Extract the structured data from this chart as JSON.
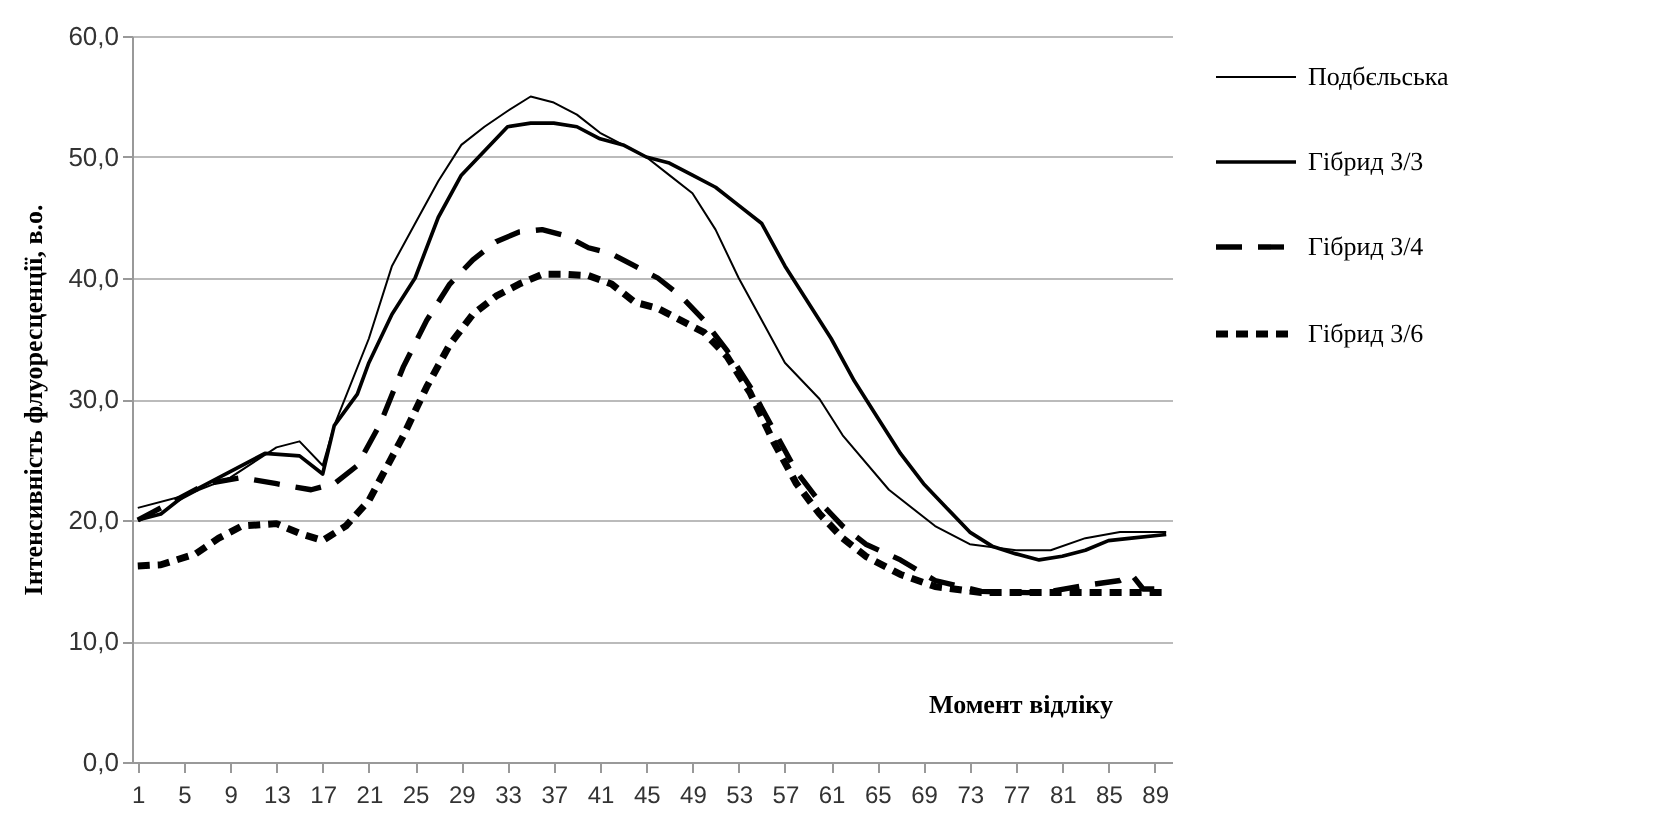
{
  "chart_data": {
    "type": "line",
    "xlabel": "Момент відліку",
    "ylabel": "Інтенсивність флуоресценції, в.о.",
    "xlim": [
      0.5,
      90.5
    ],
    "xticks": [
      1,
      5,
      9,
      13,
      17,
      21,
      25,
      29,
      33,
      37,
      41,
      45,
      49,
      53,
      57,
      61,
      65,
      69,
      73,
      77,
      81,
      85,
      89
    ],
    "ylim": [
      0,
      60
    ],
    "yticks": [
      {
        "value": 0,
        "label": "0,0"
      },
      {
        "value": 10,
        "label": "10,0"
      },
      {
        "value": 20,
        "label": "20,0"
      },
      {
        "value": 30,
        "label": "30,0"
      },
      {
        "value": 40,
        "label": "40,0"
      },
      {
        "value": 50,
        "label": "50,0"
      },
      {
        "value": 60,
        "label": "60,0"
      }
    ],
    "grid": "y",
    "legend": "right",
    "marker": "none",
    "series": [
      {
        "name": "Подбєльська",
        "color": "#000000",
        "line_style": "solid",
        "x": [
          1,
          5,
          9,
          13,
          15,
          17,
          18,
          21,
          23,
          25,
          27,
          29,
          31,
          33,
          35,
          37,
          39,
          41,
          43,
          45,
          47,
          49,
          51,
          53,
          55,
          57,
          60,
          62,
          66,
          70,
          73,
          77,
          80,
          83,
          86,
          90
        ],
        "values": [
          21,
          22,
          23.5,
          26,
          26.5,
          24.5,
          27.8,
          35,
          41,
          44.5,
          48,
          51,
          52.5,
          53.8,
          55,
          54.5,
          53.5,
          52,
          51,
          50,
          48.5,
          47,
          44,
          40,
          36.5,
          33,
          30,
          27,
          22.5,
          19.5,
          18,
          17.5,
          17.5,
          18.5,
          19,
          19
        ]
      },
      {
        "name": "Гібрид 3/3",
        "color": "#000000",
        "line_style": "solid",
        "x": [
          1,
          3,
          5,
          9,
          12,
          15,
          17,
          18,
          20,
          21,
          23,
          25,
          27,
          29,
          31,
          33,
          35,
          37,
          39,
          41,
          43,
          45,
          47,
          49,
          51,
          53,
          55,
          57,
          59,
          61,
          63,
          65,
          67,
          69,
          71,
          73,
          75,
          77,
          79,
          81,
          83,
          85,
          87,
          90
        ],
        "values": [
          20,
          20.5,
          22,
          24,
          25.5,
          25.3,
          23.8,
          27.8,
          30.4,
          33,
          37,
          40,
          45,
          48.5,
          50.5,
          52.5,
          52.8,
          52.8,
          52.5,
          51.5,
          51,
          50,
          49.5,
          48.5,
          47.5,
          46,
          44.5,
          41,
          38,
          35,
          31.5,
          28.5,
          25.5,
          23,
          21,
          19,
          17.8,
          17.2,
          16.7,
          17,
          17.5,
          18.3,
          18.5,
          18.8
        ]
      },
      {
        "name": "Гібрид 3/4",
        "color": "#000000",
        "line_style": "dashed",
        "x": [
          1,
          4,
          7,
          10,
          13,
          16,
          18,
          20,
          22,
          24,
          26,
          28,
          30,
          32,
          34,
          36,
          38,
          40,
          42,
          44,
          46,
          48,
          50,
          52,
          54,
          56,
          58,
          60,
          62,
          64,
          67,
          70,
          74,
          78,
          80,
          83,
          86,
          87,
          88,
          90
        ],
        "values": [
          20,
          21.5,
          23,
          23.5,
          23,
          22.5,
          23,
          24.5,
          28,
          32.7,
          36.5,
          39.5,
          41.5,
          43,
          43.8,
          44,
          43.5,
          42.5,
          42,
          41,
          40,
          38.5,
          36.5,
          34,
          31,
          27.5,
          24,
          21.5,
          19.5,
          18,
          16.7,
          15,
          14.1,
          14,
          14.1,
          14.6,
          15,
          15.5,
          14.3,
          14.3
        ]
      },
      {
        "name": "Гібрид 3/6",
        "color": "#000000",
        "line_style": "dotted",
        "x": [
          1,
          3,
          6,
          8,
          10,
          13,
          15,
          17,
          19,
          21,
          24,
          26,
          28,
          30,
          32,
          34,
          36,
          38,
          40,
          42,
          44,
          46,
          48,
          50,
          52,
          54,
          56,
          58,
          60,
          62,
          64,
          67,
          70,
          74,
          78,
          82,
          86,
          90
        ],
        "values": [
          16.2,
          16.3,
          17.2,
          18.5,
          19.5,
          19.7,
          18.9,
          18.3,
          19.5,
          21.6,
          27,
          31,
          34.5,
          37,
          38.5,
          39.5,
          40.3,
          40.3,
          40.2,
          39.5,
          38,
          37.5,
          36.5,
          35.5,
          33.5,
          30.5,
          26.5,
          23,
          20.5,
          18.5,
          17,
          15.5,
          14.5,
          14,
          14,
          14,
          14,
          14
        ]
      }
    ]
  }
}
